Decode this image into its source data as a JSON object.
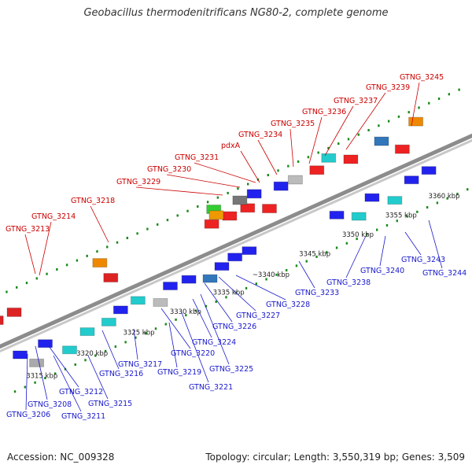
{
  "header": {
    "title": "Geobacillus thermodenitrificans NG80-2, complete genome"
  },
  "footer": {
    "accession": "Accession: NC_009328",
    "summary": "Topology: circular; Length: 3,550,319 bp; Genes: 3,509"
  },
  "colors": {
    "backbone": "#8c8c8c",
    "tick": "#1a8a1a",
    "upper_label": "#cc0000",
    "lower_label": "#1a1acc",
    "ruler_text": "#222222"
  },
  "ruler": [
    {
      "label": "3315 kbp",
      "side": "below"
    },
    {
      "label": "3320 kbp",
      "side": "below"
    },
    {
      "label": "3325 kbp",
      "side": "below"
    },
    {
      "label": "3330 kbp",
      "side": "below"
    },
    {
      "label": "3335 kbp",
      "side": "below"
    },
    {
      "label": "~3340 kbp",
      "side": "below"
    },
    {
      "label": "3345 kbp",
      "side": "below"
    },
    {
      "label": "3350 kbp",
      "side": "below"
    },
    {
      "label": "3355 kbp",
      "side": "below"
    },
    {
      "label": "3360 kbp",
      "side": "below"
    }
  ],
  "upper_genes": [
    "GTNG_3213",
    "GTNG_3214",
    "GTNG_3218",
    "GTNG_3229",
    "GTNG_3230",
    "GTNG_3231",
    "pdxA",
    "GTNG_3234",
    "GTNG_3235",
    "GTNG_3236",
    "GTNG_3237",
    "GTNG_3239",
    "GTNG_3245"
  ],
  "lower_genes": [
    "GTNG_3206",
    "GTNG_3208",
    "GTNG_3211",
    "GTNG_3212",
    "GTNG_3215",
    "GTNG_3216",
    "GTNG_3217",
    "GTNG_3219",
    "GTNG_3220",
    "GTNG_3221",
    "GTNG_3224",
    "GTNG_3225",
    "GTNG_3226",
    "GTNG_3227",
    "GTNG_3228",
    "GTNG_3233",
    "GTNG_3238",
    "GTNG_3240",
    "GTNG_3243",
    "GTNG_3244"
  ]
}
